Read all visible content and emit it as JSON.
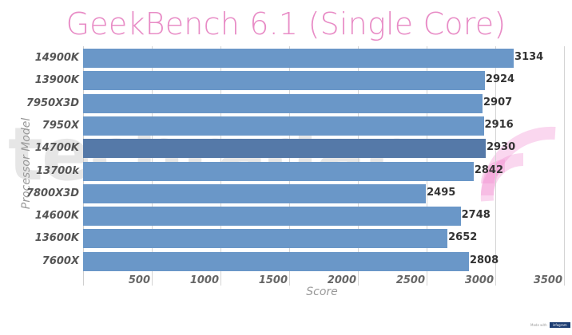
{
  "chart_data": {
    "type": "bar",
    "orientation": "horizontal",
    "title": "GeekBench 6.1 (Single Core)",
    "xlabel": "Score",
    "ylabel": "Processor Model",
    "xlim": [
      0,
      3500
    ],
    "xticks": [
      500,
      1000,
      1500,
      2000,
      2500,
      3000,
      3500
    ],
    "grid": true,
    "categories": [
      "14900K",
      "13900K",
      "7950X3D",
      "7950X",
      "14700K",
      "13700k",
      "7800X3D",
      "14600K",
      "13600K",
      "7600X"
    ],
    "values": [
      3134,
      2924,
      2907,
      2916,
      2930,
      2842,
      2495,
      2748,
      2652,
      2808
    ],
    "highlighted_category": "14700K",
    "colors": {
      "bar": "#6a97c8",
      "highlight_bar": "#5579a8",
      "title": "#e88cc6"
    }
  },
  "title": "GeekBench 6.1 (Single Core)",
  "axes": {
    "xlabel": "Score",
    "ylabel": "Processor Model",
    "xticks": [
      "500",
      "1000",
      "1500",
      "2000",
      "2500",
      "3000",
      "3500"
    ]
  },
  "bars": [
    {
      "label": "14900K",
      "value": "3134"
    },
    {
      "label": "13900K",
      "value": "2924"
    },
    {
      "label": "7950X3D",
      "value": "2907"
    },
    {
      "label": "7950X",
      "value": "2916"
    },
    {
      "label": "14700K",
      "value": "2930"
    },
    {
      "label": "13700k",
      "value": "2842"
    },
    {
      "label": "7800X3D",
      "value": "2495"
    },
    {
      "label": "14600K",
      "value": "2748"
    },
    {
      "label": "13600K",
      "value": "2652"
    },
    {
      "label": "7600X",
      "value": "2808"
    }
  ],
  "watermark": {
    "text": "techradar"
  },
  "badge": {
    "prefix": "Made with",
    "brand": "infogram"
  }
}
